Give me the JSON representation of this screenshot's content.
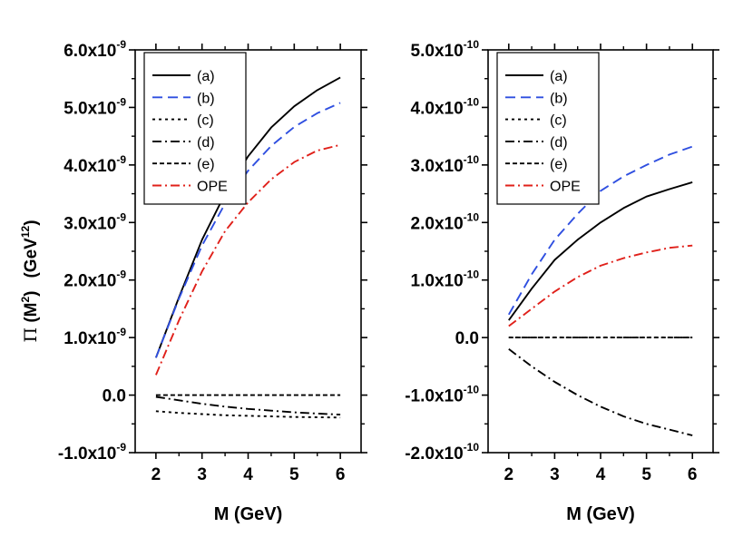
{
  "figure": {
    "ylabel_symbol": "Π",
    "ylabel_paren_left": " (M",
    "ylabel_exp1": "2",
    "ylabel_paren_right": ")",
    "ylabel_unit_left": "(GeV",
    "ylabel_exp2": "12",
    "ylabel_unit_right": ")"
  },
  "chart_data": [
    {
      "type": "line",
      "xlabel": "M (GeV)",
      "ylabel": "Π (M²) (GeV¹²)",
      "xlim": [
        1.55,
        6.45
      ],
      "ylim": [
        -1e-09,
        6e-09
      ],
      "xticks": [
        2,
        3,
        4,
        5,
        6
      ],
      "yticks": [
        {
          "value": -1e-09,
          "mant": "-1.0x10",
          "exp": "-9"
        },
        {
          "value": 0,
          "mant": "0.0",
          "exp": ""
        },
        {
          "value": 1e-09,
          "mant": "1.0x10",
          "exp": "-9"
        },
        {
          "value": 2e-09,
          "mant": "2.0x10",
          "exp": "-9"
        },
        {
          "value": 3e-09,
          "mant": "3.0x10",
          "exp": "-9"
        },
        {
          "value": 4e-09,
          "mant": "4.0x10",
          "exp": "-9"
        },
        {
          "value": 5e-09,
          "mant": "5.0x10",
          "exp": "-9"
        },
        {
          "value": 6e-09,
          "mant": "6.0x10",
          "exp": "-9"
        }
      ],
      "legend_position": "top-left",
      "x": [
        2.0,
        2.5,
        3.0,
        3.5,
        4.0,
        4.5,
        5.0,
        5.5,
        6.0
      ],
      "series": [
        {
          "name": "(a)",
          "color": "#000000",
          "dash": "solid",
          "values": [
            6.5e-10,
            1.7e-09,
            2.7e-09,
            3.5e-09,
            4.15e-09,
            4.65e-09,
            5.02e-09,
            5.3e-09,
            5.52e-09
          ]
        },
        {
          "name": "(b)",
          "color": "#2f4fe0",
          "dash": "long-dash",
          "values": [
            6.5e-10,
            1.68e-09,
            2.6e-09,
            3.33e-09,
            3.9e-09,
            4.33e-09,
            4.66e-09,
            4.9e-09,
            5.08e-09
          ]
        },
        {
          "name": "(c)",
          "color": "#000000",
          "dash": "dot",
          "values": [
            -2.8e-10,
            -3.1e-10,
            -3.3e-10,
            -3.5e-10,
            -3.6e-10,
            -3.7e-10,
            -3.8e-10,
            -3.85e-10,
            -3.9e-10
          ]
        },
        {
          "name": "(d)",
          "color": "#000000",
          "dash": "dash-dot",
          "values": [
            -3e-11,
            -9e-11,
            -1.5e-10,
            -2e-10,
            -2.4e-10,
            -2.7e-10,
            -3e-10,
            -3.2e-10,
            -3.4e-10
          ]
        },
        {
          "name": "(e)",
          "color": "#000000",
          "dash": "short-dash",
          "values": [
            0,
            0,
            0,
            0,
            0,
            0,
            0,
            0,
            0
          ]
        },
        {
          "name": "OPE",
          "color": "#e0201a",
          "dash": "dash-dot",
          "values": [
            3.5e-10,
            1.3e-09,
            2.15e-09,
            2.85e-09,
            3.35e-09,
            3.75e-09,
            4.05e-09,
            4.25e-09,
            4.35e-09
          ]
        }
      ]
    },
    {
      "type": "line",
      "xlabel": "M (GeV)",
      "ylabel": "",
      "xlim": [
        1.55,
        6.45
      ],
      "ylim": [
        -2e-10,
        5e-10
      ],
      "xticks": [
        2,
        3,
        4,
        5,
        6
      ],
      "yticks": [
        {
          "value": -2e-10,
          "mant": "-2.0x10",
          "exp": "-10"
        },
        {
          "value": -1e-10,
          "mant": "-1.0x10",
          "exp": "-10"
        },
        {
          "value": 0,
          "mant": "0.0",
          "exp": ""
        },
        {
          "value": 1e-10,
          "mant": "1.0x10",
          "exp": "-10"
        },
        {
          "value": 2e-10,
          "mant": "2.0x10",
          "exp": "-10"
        },
        {
          "value": 3e-10,
          "mant": "3.0x10",
          "exp": "-10"
        },
        {
          "value": 4e-10,
          "mant": "4.0x10",
          "exp": "-10"
        },
        {
          "value": 5e-10,
          "mant": "5.0x10",
          "exp": "-10"
        }
      ],
      "legend_position": "top-left",
      "x": [
        2.0,
        2.5,
        3.0,
        3.5,
        4.0,
        4.5,
        5.0,
        5.5,
        6.0
      ],
      "series": [
        {
          "name": "(a)",
          "color": "#000000",
          "dash": "solid",
          "values": [
            3e-11,
            8.5e-11,
            1.35e-10,
            1.7e-10,
            2e-10,
            2.25e-10,
            2.45e-10,
            2.58e-10,
            2.7e-10
          ]
        },
        {
          "name": "(b)",
          "color": "#2f4fe0",
          "dash": "long-dash",
          "values": [
            4e-11,
            1.1e-10,
            1.7e-10,
            2.15e-10,
            2.55e-10,
            2.8e-10,
            3e-10,
            3.18e-10,
            3.32e-10
          ]
        },
        {
          "name": "(c)",
          "color": "#000000",
          "dash": "dot",
          "values": [
            0,
            0,
            0,
            0,
            0,
            0,
            0,
            0,
            0
          ]
        },
        {
          "name": "(d)",
          "color": "#000000",
          "dash": "dash-dot",
          "values": [
            -2e-11,
            -5e-11,
            -7.7e-11,
            -1e-10,
            -1.2e-10,
            -1.37e-10,
            -1.5e-10,
            -1.6e-10,
            -1.7e-10
          ]
        },
        {
          "name": "(e)",
          "color": "#000000",
          "dash": "short-dash",
          "values": [
            0,
            0,
            0,
            0,
            0,
            0,
            0,
            0,
            0
          ]
        },
        {
          "name": "OPE",
          "color": "#e0201a",
          "dash": "dash-dot",
          "values": [
            2e-11,
            5e-11,
            8e-11,
            1.05e-10,
            1.25e-10,
            1.38e-10,
            1.48e-10,
            1.56e-10,
            1.6e-10
          ]
        }
      ]
    }
  ]
}
